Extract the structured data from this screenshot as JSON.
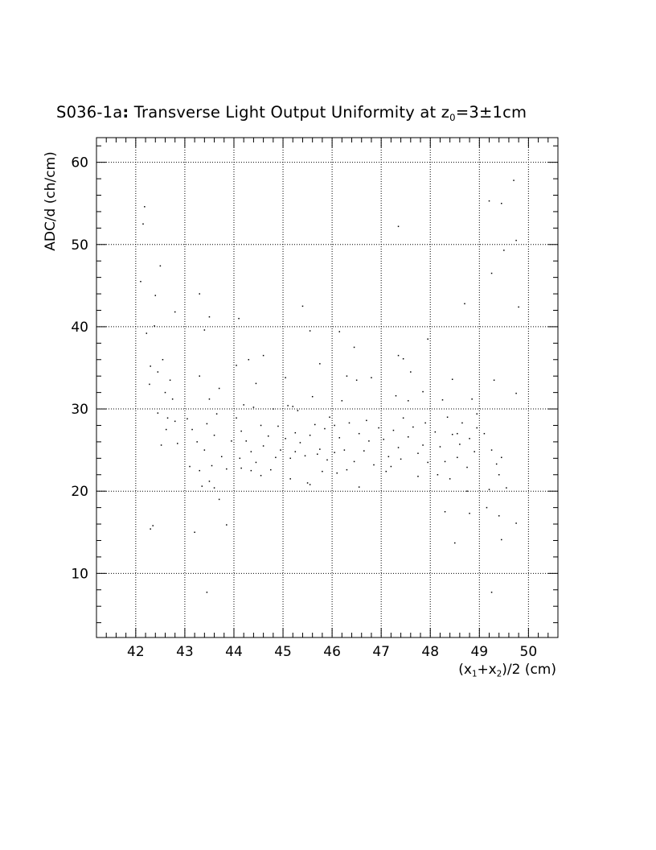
{
  "chart_data": {
    "type": "scatter",
    "title": {
      "prefix": "S036-1a",
      "colon": ":",
      "text": " Transverse Light Output Uniformity at z",
      "sub": "0",
      "suffix": "=3±1cm"
    },
    "ylabel": "ADC/d (ch/cm)",
    "xlabel": {
      "p1": "(x",
      "s1": "1",
      "p2": "+x",
      "s2": "2",
      "p3": ")/2 (cm)"
    },
    "xlim": [
      41.2,
      50.6
    ],
    "ylim": [
      2.2,
      63
    ],
    "xticks": [
      42,
      43,
      44,
      45,
      46,
      47,
      48,
      49,
      50
    ],
    "yticks": [
      10,
      20,
      30,
      40,
      50,
      60
    ],
    "grid": true,
    "colors": {
      "points": "#000000",
      "grid": "#000000",
      "background": "#ffffff"
    },
    "points": [
      [
        42.18,
        54.6
      ],
      [
        42.15,
        52.5
      ],
      [
        42.1,
        45.5
      ],
      [
        42.4,
        43.8
      ],
      [
        42.5,
        47.4
      ],
      [
        42.8,
        41.8
      ],
      [
        42.22,
        39.2
      ],
      [
        42.3,
        35.2
      ],
      [
        42.28,
        33.0
      ],
      [
        42.45,
        34.5
      ],
      [
        42.6,
        32.0
      ],
      [
        42.55,
        36.0
      ],
      [
        42.7,
        33.5
      ],
      [
        42.75,
        31.2
      ],
      [
        42.65,
        28.9
      ],
      [
        42.8,
        28.5
      ],
      [
        42.85,
        25.8
      ],
      [
        42.52,
        25.6
      ],
      [
        42.62,
        27.5
      ],
      [
        42.3,
        15.4
      ],
      [
        42.35,
        15.8
      ],
      [
        42.45,
        29.5
      ],
      [
        42.38,
        40.1
      ],
      [
        43.3,
        44.0
      ],
      [
        43.5,
        41.2
      ],
      [
        43.4,
        39.6
      ],
      [
        43.3,
        34.0
      ],
      [
        43.5,
        31.2
      ],
      [
        43.7,
        32.5
      ],
      [
        43.05,
        28.8
      ],
      [
        43.15,
        27.5
      ],
      [
        43.25,
        26.0
      ],
      [
        43.3,
        22.5
      ],
      [
        43.4,
        25.0
      ],
      [
        43.55,
        23.1
      ],
      [
        43.6,
        26.8
      ],
      [
        43.65,
        29.4
      ],
      [
        43.75,
        24.2
      ],
      [
        43.85,
        22.7
      ],
      [
        43.35,
        20.6
      ],
      [
        43.5,
        21.2
      ],
      [
        43.6,
        20.4
      ],
      [
        43.7,
        19.0
      ],
      [
        43.95,
        26.1
      ],
      [
        43.45,
        7.7
      ],
      [
        43.2,
        15.0
      ],
      [
        43.85,
        15.9
      ],
      [
        43.1,
        23.0
      ],
      [
        43.45,
        28.2
      ],
      [
        44.1,
        41.0
      ],
      [
        44.05,
        35.3
      ],
      [
        44.3,
        36.0
      ],
      [
        44.45,
        33.1
      ],
      [
        44.6,
        36.5
      ],
      [
        44.2,
        30.5
      ],
      [
        44.4,
        30.2
      ],
      [
        44.05,
        28.9
      ],
      [
        44.15,
        27.3
      ],
      [
        44.25,
        26.1
      ],
      [
        44.35,
        24.8
      ],
      [
        44.45,
        23.5
      ],
      [
        44.55,
        28.0
      ],
      [
        44.6,
        25.5
      ],
      [
        44.7,
        26.7
      ],
      [
        44.75,
        22.6
      ],
      [
        44.85,
        24.1
      ],
      [
        44.9,
        27.9
      ],
      [
        44.95,
        25.0
      ],
      [
        44.15,
        22.8
      ],
      [
        44.35,
        22.5
      ],
      [
        44.8,
        30.0
      ],
      [
        44.12,
        24.0
      ],
      [
        44.55,
        21.9
      ],
      [
        45.4,
        42.5
      ],
      [
        45.05,
        33.8
      ],
      [
        45.1,
        30.4
      ],
      [
        45.2,
        30.3
      ],
      [
        45.3,
        29.8
      ],
      [
        45.05,
        26.4
      ],
      [
        45.15,
        24.0
      ],
      [
        45.25,
        27.1
      ],
      [
        45.35,
        25.9
      ],
      [
        45.45,
        24.3
      ],
      [
        45.55,
        26.8
      ],
      [
        45.65,
        28.1
      ],
      [
        45.75,
        25.1
      ],
      [
        45.85,
        27.6
      ],
      [
        45.95,
        29.0
      ],
      [
        45.15,
        21.5
      ],
      [
        45.5,
        21.0
      ],
      [
        45.55,
        20.8
      ],
      [
        45.7,
        24.5
      ],
      [
        45.8,
        22.4
      ],
      [
        45.9,
        23.8
      ],
      [
        45.6,
        31.5
      ],
      [
        45.75,
        35.5
      ],
      [
        45.55,
        39.5
      ],
      [
        45.25,
        24.8
      ],
      [
        46.15,
        39.4
      ],
      [
        46.45,
        37.5
      ],
      [
        46.3,
        34.0
      ],
      [
        46.5,
        33.5
      ],
      [
        46.2,
        31.0
      ],
      [
        46.05,
        28.0
      ],
      [
        46.15,
        26.5
      ],
      [
        46.25,
        25.0
      ],
      [
        46.35,
        28.3
      ],
      [
        46.45,
        23.6
      ],
      [
        46.55,
        27.0
      ],
      [
        46.65,
        24.9
      ],
      [
        46.75,
        26.1
      ],
      [
        46.85,
        23.2
      ],
      [
        46.95,
        27.7
      ],
      [
        46.1,
        22.2
      ],
      [
        46.3,
        22.6
      ],
      [
        46.55,
        20.5
      ],
      [
        46.8,
        33.8
      ],
      [
        46.05,
        24.7
      ],
      [
        46.7,
        28.6
      ],
      [
        47.35,
        52.2
      ],
      [
        47.35,
        36.5
      ],
      [
        47.45,
        36.1
      ],
      [
        47.3,
        31.6
      ],
      [
        47.05,
        26.3
      ],
      [
        47.15,
        24.2
      ],
      [
        47.25,
        27.4
      ],
      [
        47.35,
        25.3
      ],
      [
        47.45,
        28.9
      ],
      [
        47.55,
        26.6
      ],
      [
        47.65,
        27.8
      ],
      [
        47.75,
        24.6
      ],
      [
        47.85,
        25.6
      ],
      [
        47.95,
        23.5
      ],
      [
        47.1,
        22.4
      ],
      [
        47.2,
        23.0
      ],
      [
        47.75,
        21.8
      ],
      [
        47.85,
        32.1
      ],
      [
        47.95,
        38.5
      ],
      [
        47.55,
        31.0
      ],
      [
        47.6,
        34.5
      ],
      [
        47.4,
        23.9
      ],
      [
        47.9,
        28.3
      ],
      [
        48.1,
        27.2
      ],
      [
        48.2,
        25.4
      ],
      [
        48.3,
        23.6
      ],
      [
        48.35,
        29.0
      ],
      [
        48.45,
        26.9
      ],
      [
        48.55,
        24.1
      ],
      [
        48.65,
        28.3
      ],
      [
        48.75,
        22.9
      ],
      [
        48.8,
        26.4
      ],
      [
        48.9,
        24.8
      ],
      [
        48.95,
        27.7
      ],
      [
        48.15,
        22.0
      ],
      [
        48.4,
        21.5
      ],
      [
        48.5,
        13.7
      ],
      [
        48.7,
        42.8
      ],
      [
        48.8,
        17.3
      ],
      [
        48.25,
        31.1
      ],
      [
        48.45,
        33.6
      ],
      [
        48.75,
        20.0
      ],
      [
        48.85,
        31.2
      ],
      [
        48.6,
        25.7
      ],
      [
        48.3,
        17.5
      ],
      [
        48.55,
        27.0
      ],
      [
        48.95,
        29.4
      ],
      [
        49.2,
        55.3
      ],
      [
        49.25,
        46.5
      ],
      [
        49.45,
        55.0
      ],
      [
        49.7,
        57.8
      ],
      [
        49.75,
        50.5
      ],
      [
        49.8,
        42.4
      ],
      [
        49.5,
        49.3
      ],
      [
        49.1,
        27.0
      ],
      [
        49.25,
        25.0
      ],
      [
        49.35,
        23.3
      ],
      [
        49.45,
        24.1
      ],
      [
        49.3,
        33.5
      ],
      [
        49.2,
        20.2
      ],
      [
        49.55,
        20.4
      ],
      [
        49.4,
        17.0
      ],
      [
        49.45,
        14.1
      ],
      [
        49.75,
        16.1
      ],
      [
        49.25,
        7.7
      ],
      [
        49.75,
        31.9
      ],
      [
        49.15,
        18.0
      ],
      [
        49.4,
        22.0
      ]
    ]
  }
}
